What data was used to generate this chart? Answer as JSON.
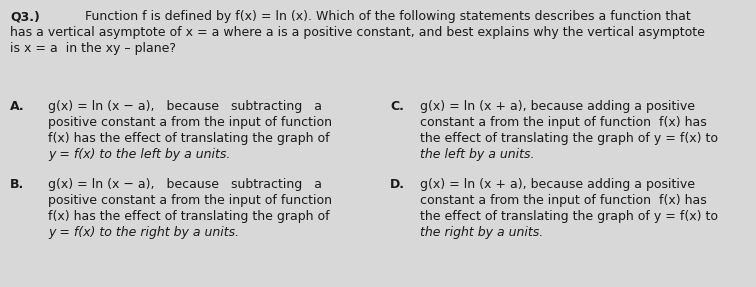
{
  "background_color": "#d8d8d8",
  "text_color": "#1a1a1a",
  "fig_width": 7.56,
  "fig_height": 2.87,
  "dpi": 100,
  "q_label": "Q3.)",
  "q_text_line1": "Function f is defined by f(x) = ln (x). Which of the following statements describes a function that",
  "q_text_line2": "has a vertical asymptote of x = a where a is a positive constant, and best explains why the vertical asymptote",
  "q_text_line3": "is x = a  in the xy – plane?",
  "A_label": "A.",
  "A_line1": "g(x) = ln (x − a),   because   subtracting   a",
  "A_line2": "positive constant a from the input of function",
  "A_line3": "f(x) has the effect of translating the graph of",
  "A_line4": "y = f(x) to the left by a units.",
  "B_label": "B.",
  "B_line1": "g(x) = ln (x − a),   because   subtracting   a",
  "B_line2": "positive constant a from the input of function",
  "B_line3": "f(x) has the effect of translating the graph of",
  "B_line4": "y = f(x) to the right by a units.",
  "C_label": "C.",
  "C_line1": "g(x) = ln (x + a), because adding a positive",
  "C_line2": "constant a from the input of function  f(x) has",
  "C_line3": "the effect of translating the graph of y = f(x) to",
  "C_line4": "the left by a units.",
  "D_label": "D.",
  "D_line1": "g(x) = ln (x + a), because adding a positive",
  "D_line2": "constant a from the input of function  f(x) has",
  "D_line3": "the effect of translating the graph of y = f(x) to",
  "D_line4": "the right by a units.",
  "font_size": 9.0,
  "font_size_q": 9.0
}
